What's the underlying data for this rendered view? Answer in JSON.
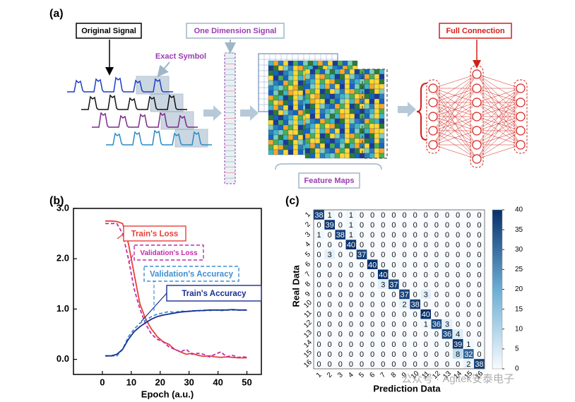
{
  "diagram": {
    "label": "(a)",
    "original_signal": "Original Signal",
    "exact_symbol": "Exact Symbol",
    "one_dimension_signal": "One Dimension Signal",
    "feature_maps": "Feature Maps",
    "full_connection": "Full Connection"
  },
  "watermark": "公众号 · Agitek安泰电子",
  "chart_data": [
    {
      "type": "line",
      "label": "(b)",
      "x_label": "Epoch (a.u.)",
      "x": [
        1,
        3,
        5,
        7,
        9,
        11,
        13,
        15,
        17,
        19,
        21,
        23,
        25,
        27,
        29,
        31,
        33,
        35,
        37,
        39,
        41,
        43,
        45,
        47,
        49,
        50
      ],
      "xlim": [
        -10,
        55
      ],
      "xticks": [
        0,
        10,
        20,
        30,
        40,
        50
      ],
      "ylim": [
        -0.3,
        3.0
      ],
      "yticks": [
        {
          "value": 0,
          "label": "0.0"
        },
        {
          "value": 1,
          "label": "1.0"
        },
        {
          "value": 2,
          "label": "2.0"
        },
        {
          "value": 3,
          "label": "3.0"
        }
      ],
      "series": [
        {
          "name": "Train's Loss",
          "color": "#e8403a",
          "style": "solid",
          "values": [
            2.75,
            2.75,
            2.74,
            2.7,
            2.3,
            1.7,
            1.1,
            0.8,
            0.6,
            0.45,
            0.35,
            0.3,
            0.2,
            0.15,
            0.1,
            0.12,
            0.08,
            0.06,
            0.07,
            0.05,
            0.04,
            0.05,
            0.04,
            0.03,
            0.03,
            0.03
          ]
        },
        {
          "name": "Validation's Loss",
          "color": "#c42aa6",
          "style": "dashed",
          "values": [
            2.7,
            2.7,
            2.7,
            2.5,
            2.0,
            1.4,
            1.0,
            0.7,
            0.5,
            0.4,
            0.35,
            0.25,
            0.2,
            0.15,
            0.2,
            0.1,
            0.12,
            0.1,
            0.05,
            0.1,
            0.15,
            0.05,
            0.08,
            0.04,
            0.05,
            0.04
          ]
        },
        {
          "name": "Validation's Accuracy",
          "color": "#3f8fd2",
          "style": "dashed",
          "values": [
            0.07,
            0.07,
            0.07,
            0.2,
            0.45,
            0.6,
            0.72,
            0.78,
            0.85,
            0.9,
            0.92,
            0.95,
            0.93,
            0.96,
            0.95,
            0.97,
            0.96,
            0.98,
            0.97,
            0.98,
            0.97,
            0.98,
            0.98,
            0.98,
            0.98,
            0.98
          ]
        },
        {
          "name": "Train's Accuracy",
          "color": "#1a2f8f",
          "style": "solid",
          "values": [
            0.07,
            0.07,
            0.1,
            0.2,
            0.4,
            0.55,
            0.65,
            0.73,
            0.8,
            0.85,
            0.88,
            0.9,
            0.92,
            0.94,
            0.95,
            0.96,
            0.97,
            0.97,
            0.98,
            0.98,
            0.98,
            0.98,
            0.99,
            0.98,
            0.98,
            0.98
          ]
        }
      ]
    },
    {
      "type": "heatmap",
      "label": "(c)",
      "x_label": "Prediction Data",
      "y_label": "Real Data",
      "categories": [
        "1",
        "2",
        "3",
        "4",
        "5",
        "6",
        "7",
        "8",
        "9",
        "10",
        "11",
        "12",
        "13",
        "14",
        "15",
        "16"
      ],
      "values": [
        [
          38,
          1,
          0,
          1,
          0,
          0,
          0,
          0,
          0,
          0,
          0,
          0,
          0,
          0,
          0,
          0
        ],
        [
          0,
          39,
          0,
          1,
          0,
          0,
          0,
          0,
          0,
          0,
          0,
          0,
          0,
          0,
          0,
          0
        ],
        [
          1,
          0,
          38,
          1,
          0,
          0,
          0,
          0,
          0,
          0,
          0,
          0,
          0,
          0,
          0,
          0
        ],
        [
          0,
          0,
          0,
          40,
          0,
          0,
          0,
          0,
          0,
          0,
          0,
          0,
          0,
          0,
          0,
          0
        ],
        [
          0,
          3,
          0,
          0,
          37,
          0,
          0,
          0,
          0,
          0,
          0,
          0,
          0,
          0,
          0,
          0
        ],
        [
          0,
          0,
          0,
          0,
          0,
          40,
          0,
          0,
          0,
          0,
          0,
          0,
          0,
          0,
          0,
          0
        ],
        [
          0,
          0,
          0,
          0,
          0,
          0,
          40,
          0,
          0,
          0,
          0,
          0,
          0,
          0,
          0,
          0
        ],
        [
          0,
          0,
          0,
          0,
          0,
          0,
          3,
          37,
          0,
          0,
          0,
          0,
          0,
          0,
          0,
          0
        ],
        [
          0,
          0,
          0,
          0,
          0,
          0,
          0,
          0,
          37,
          0,
          3,
          0,
          0,
          0,
          0,
          0
        ],
        [
          0,
          0,
          0,
          0,
          0,
          0,
          0,
          0,
          2,
          38,
          0,
          0,
          0,
          0,
          0,
          0
        ],
        [
          0,
          0,
          0,
          0,
          0,
          0,
          0,
          0,
          0,
          0,
          40,
          0,
          0,
          0,
          0,
          0
        ],
        [
          0,
          0,
          0,
          0,
          0,
          0,
          0,
          0,
          0,
          0,
          1,
          36,
          3,
          0,
          0,
          0
        ],
        [
          0,
          0,
          0,
          0,
          0,
          0,
          0,
          0,
          0,
          0,
          0,
          0,
          36,
          4,
          0,
          0
        ],
        [
          0,
          0,
          0,
          0,
          0,
          0,
          0,
          0,
          0,
          0,
          0,
          0,
          0,
          39,
          1,
          0
        ],
        [
          0,
          0,
          0,
          0,
          0,
          0,
          0,
          0,
          0,
          0,
          0,
          0,
          0,
          8,
          32,
          0
        ],
        [
          0,
          0,
          0,
          0,
          0,
          0,
          0,
          0,
          0,
          0,
          0,
          0,
          0,
          0,
          2,
          38
        ]
      ],
      "clim": [
        0,
        40
      ],
      "cticks": [
        0,
        5,
        10,
        15,
        20,
        25,
        30,
        35,
        40
      ],
      "colormap": [
        "#f7fbff",
        "#6baed6",
        "#08306b"
      ]
    }
  ]
}
